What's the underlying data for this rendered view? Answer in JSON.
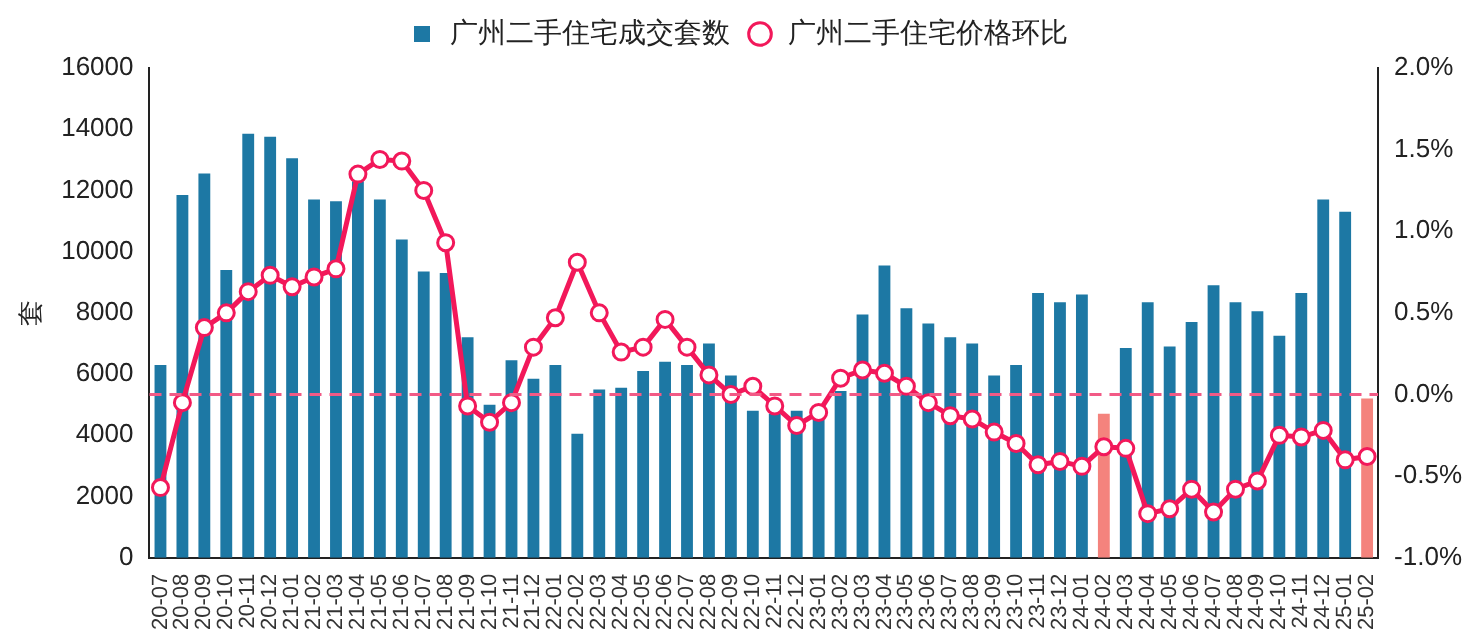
{
  "chart_data": {
    "type": "bar",
    "ylabel": "套",
    "categories": [
      "20-07",
      "20-08",
      "20-09",
      "20-10",
      "20-11",
      "20-12",
      "21-01",
      "21-02",
      "21-03",
      "21-04",
      "21-05",
      "21-06",
      "21-07",
      "21-08",
      "21-09",
      "21-10",
      "21-11",
      "21-12",
      "22-01",
      "22-02",
      "22-03",
      "22-04",
      "22-05",
      "22-06",
      "22-07",
      "22-08",
      "22-09",
      "22-10",
      "22-11",
      "22-12",
      "23-01",
      "23-02",
      "23-03",
      "23-04",
      "23-05",
      "23-06",
      "23-07",
      "23-08",
      "23-09",
      "23-10",
      "23-11",
      "23-12",
      "24-01",
      "24-02",
      "24-03",
      "24-04",
      "24-05",
      "24-06",
      "24-07",
      "24-08",
      "24-09",
      "24-10",
      "24-11",
      "24-12",
      "25-01",
      "25-02"
    ],
    "series": [
      {
        "name": "广州二手住宅成交套数",
        "color": "#1d78a4",
        "colors": [
          "#1d78a4",
          "#1d78a4",
          "#1d78a4",
          "#1d78a4",
          "#1d78a4",
          "#1d78a4",
          "#1d78a4",
          "#1d78a4",
          "#1d78a4",
          "#1d78a4",
          "#1d78a4",
          "#1d78a4",
          "#1d78a4",
          "#1d78a4",
          "#1d78a4",
          "#1d78a4",
          "#1d78a4",
          "#1d78a4",
          "#1d78a4",
          "#1d78a4",
          "#1d78a4",
          "#1d78a4",
          "#1d78a4",
          "#1d78a4",
          "#1d78a4",
          "#1d78a4",
          "#1d78a4",
          "#1d78a4",
          "#1d78a4",
          "#1d78a4",
          "#1d78a4",
          "#1d78a4",
          "#1d78a4",
          "#1d78a4",
          "#1d78a4",
          "#1d78a4",
          "#1d78a4",
          "#1d78a4",
          "#1d78a4",
          "#1d78a4",
          "#1d78a4",
          "#1d78a4",
          "#1d78a4",
          "#f4837d",
          "#1d78a4",
          "#1d78a4",
          "#1d78a4",
          "#1d78a4",
          "#1d78a4",
          "#1d78a4",
          "#1d78a4",
          "#1d78a4",
          "#1d78a4",
          "#1d78a4",
          "#1d78a4",
          "#f4837d"
        ],
        "values": [
          6300,
          11850,
          12550,
          9400,
          13850,
          13750,
          13050,
          11700,
          11650,
          12300,
          11700,
          10400,
          9350,
          9300,
          7200,
          5000,
          6450,
          5850,
          6300,
          4050,
          5500,
          5550,
          6100,
          6400,
          6300,
          7000,
          5950,
          4800,
          4700,
          4800,
          4700,
          5450,
          7950,
          9550,
          8150,
          7650,
          7200,
          7000,
          5950,
          6300,
          8650,
          8350,
          8600,
          4700,
          6850,
          8350,
          6900,
          7700,
          8900,
          8350,
          8050,
          7250,
          8650,
          11700,
          11300,
          5200
        ]
      },
      {
        "name": "广州二手住宅价格环比",
        "type": "line",
        "axis": "y2",
        "color": "#f2185a",
        "marker": "circle",
        "values": [
          -0.57,
          -0.05,
          0.41,
          0.5,
          0.63,
          0.73,
          0.66,
          0.72,
          0.77,
          1.35,
          1.44,
          1.43,
          1.25,
          0.93,
          -0.07,
          -0.17,
          -0.05,
          0.29,
          0.47,
          0.81,
          0.5,
          0.26,
          0.29,
          0.46,
          0.29,
          0.12,
          0.0,
          0.05,
          -0.07,
          -0.19,
          -0.11,
          0.1,
          0.15,
          0.13,
          0.05,
          -0.05,
          -0.13,
          -0.15,
          -0.23,
          -0.3,
          -0.43,
          -0.41,
          -0.44,
          -0.32,
          -0.33,
          -0.73,
          -0.7,
          -0.58,
          -0.72,
          -0.58,
          -0.53,
          -0.25,
          -0.26,
          -0.22,
          -0.4,
          -0.38
        ]
      }
    ],
    "ylim": [
      0,
      16000
    ],
    "yticks": [
      0,
      2000,
      4000,
      6000,
      8000,
      10000,
      12000,
      14000,
      16000
    ],
    "y2lim": [
      -1.0,
      2.0
    ],
    "y2ticks": [
      {
        "value": -1.0,
        "label": "-1.0%"
      },
      {
        "value": -0.5,
        "label": "-0.5%"
      },
      {
        "value": 0,
        "label": "0.0%"
      },
      {
        "value": 0.5,
        "label": "0.5%"
      },
      {
        "value": 1.0,
        "label": "1.0%"
      },
      {
        "value": 1.5,
        "label": "1.5%"
      },
      {
        "value": 2.0,
        "label": "2.0%"
      }
    ],
    "ref_lines": [
      {
        "axis": "y2",
        "value": 0,
        "color": "#f25a86",
        "line_style": "dashed"
      }
    ],
    "grid": false,
    "legend": "top"
  }
}
